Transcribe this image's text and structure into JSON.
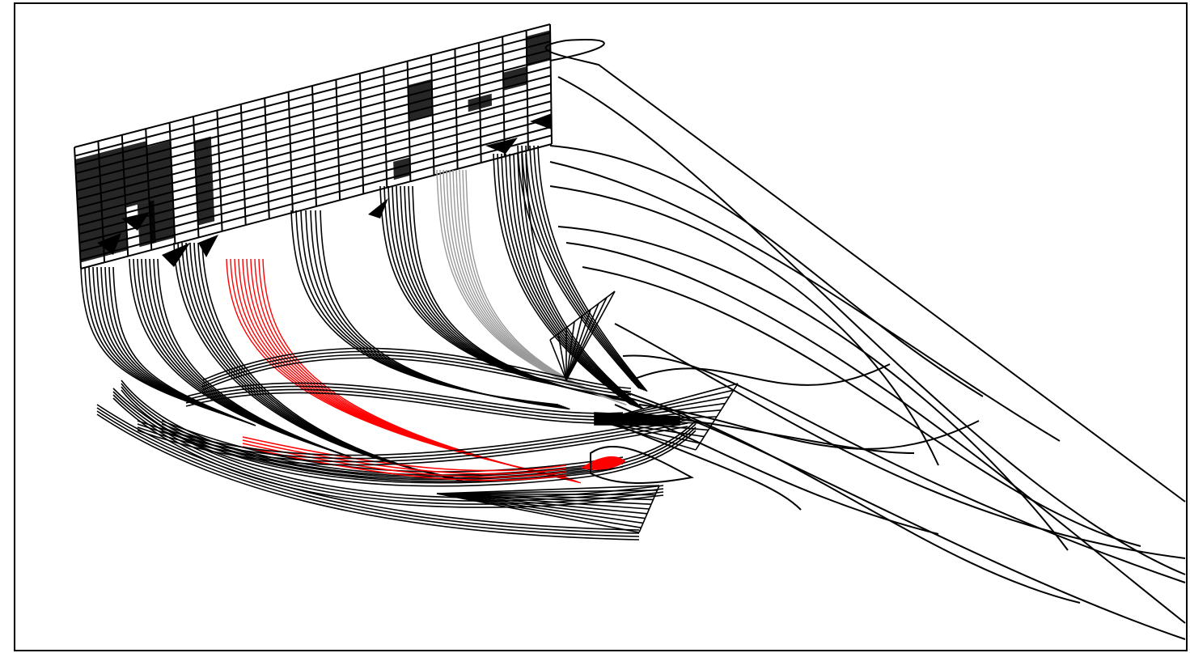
{
  "figure": {
    "kind": "wireframe surface plot",
    "frame": "black border",
    "background_color": "#ffffff",
    "line_color": "#000000",
    "highlight_color": "#ff0000",
    "secondary_color": "#999999",
    "text": []
  }
}
